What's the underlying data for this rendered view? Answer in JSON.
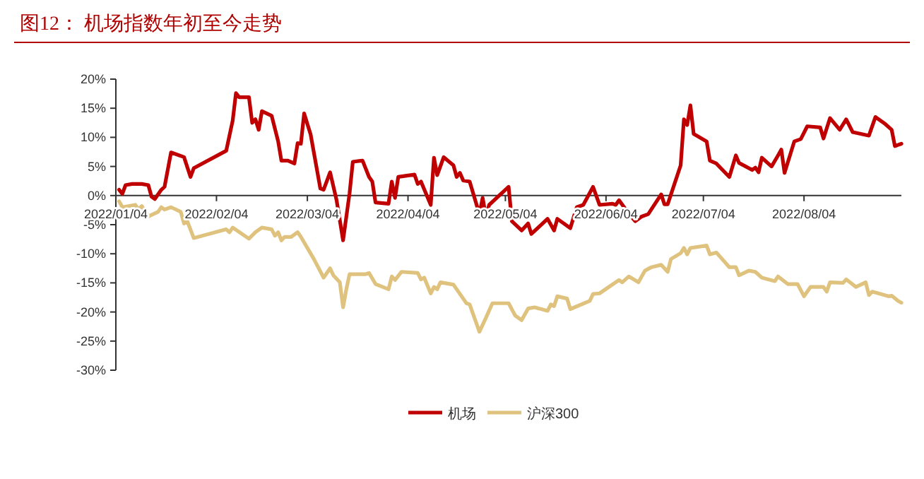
{
  "chart_data": {
    "type": "line",
    "title": "图12：  机场指数年初至今走势",
    "xlim": [
      "2022-01-04",
      "2022-09-03"
    ],
    "xticks": [
      {
        "value": "2022-01-04",
        "label": "2022/01/04"
      },
      {
        "value": "2022-02-04",
        "label": "2022/02/04"
      },
      {
        "value": "2022-03-04",
        "label": "2022/03/04"
      },
      {
        "value": "2022-04-04",
        "label": "2022/04/04"
      },
      {
        "value": "2022-05-04",
        "label": "2022/05/04"
      },
      {
        "value": "2022-06-04",
        "label": "2022/06/04"
      },
      {
        "value": "2022-07-04",
        "label": "2022/07/04"
      },
      {
        "value": "2022-08-04",
        "label": "2022/08/04"
      }
    ],
    "ylim": [
      -30,
      20
    ],
    "yticks": [
      {
        "value": -30,
        "label": "-30%"
      },
      {
        "value": -25,
        "label": "-25%"
      },
      {
        "value": -20,
        "label": "-20%"
      },
      {
        "value": -15,
        "label": "-15%"
      },
      {
        "value": -10,
        "label": "-10%"
      },
      {
        "value": -5,
        "label": "-5%"
      },
      {
        "value": 0,
        "label": "0%"
      },
      {
        "value": 5,
        "label": "5%"
      },
      {
        "value": 10,
        "label": "10%"
      },
      {
        "value": 15,
        "label": "15%"
      },
      {
        "value": 20,
        "label": "20%"
      }
    ],
    "grid": false,
    "legend": "bottom",
    "marker": "none",
    "line_style": "solid",
    "series": [
      {
        "name": "机场",
        "color": "#c00000",
        "x": [
          "2022-01-05",
          "2022-01-06",
          "2022-01-07",
          "2022-01-09",
          "2022-01-12",
          "2022-01-14",
          "2022-01-15",
          "2022-01-16",
          "2022-01-18",
          "2022-01-19",
          "2022-01-21",
          "2022-01-25",
          "2022-01-27",
          "2022-01-28",
          "2022-02-07",
          "2022-02-09",
          "2022-02-10",
          "2022-02-11",
          "2022-02-14",
          "2022-02-15",
          "2022-02-16",
          "2022-02-17",
          "2022-02-18",
          "2022-02-21",
          "2022-02-23",
          "2022-02-24",
          "2022-02-26",
          "2022-02-28",
          "2022-03-01",
          "2022-03-02",
          "2022-03-03",
          "2022-03-05",
          "2022-03-08",
          "2022-03-09",
          "2022-03-11",
          "2022-03-13",
          "2022-03-15",
          "2022-03-17",
          "2022-03-18",
          "2022-03-21",
          "2022-03-23",
          "2022-03-24",
          "2022-03-25",
          "2022-03-29",
          "2022-03-30",
          "2022-03-31",
          "2022-04-01",
          "2022-04-06",
          "2022-04-07",
          "2022-04-08",
          "2022-04-11",
          "2022-04-12",
          "2022-04-13",
          "2022-04-15",
          "2022-04-18",
          "2022-04-19",
          "2022-04-20",
          "2022-04-21",
          "2022-04-23",
          "2022-04-26",
          "2022-04-27",
          "2022-04-28",
          "2022-04-29",
          "2022-05-05",
          "2022-05-06",
          "2022-05-09",
          "2022-05-11",
          "2022-05-12",
          "2022-05-17",
          "2022-05-19",
          "2022-05-20",
          "2022-05-24",
          "2022-05-26",
          "2022-05-28",
          "2022-05-31",
          "2022-06-02",
          "2022-06-06",
          "2022-06-07",
          "2022-06-08",
          "2022-06-11",
          "2022-06-13",
          "2022-06-15",
          "2022-06-17",
          "2022-06-21",
          "2022-06-22",
          "2022-06-23",
          "2022-06-27",
          "2022-06-28",
          "2022-06-29",
          "2022-06-30",
          "2022-07-01",
          "2022-07-05",
          "2022-07-06",
          "2022-07-08",
          "2022-07-12",
          "2022-07-14",
          "2022-07-15",
          "2022-07-19",
          "2022-07-20",
          "2022-07-21",
          "2022-07-22",
          "2022-07-25",
          "2022-07-27",
          "2022-07-28",
          "2022-07-29",
          "2022-08-01",
          "2022-08-03",
          "2022-08-05",
          "2022-08-09",
          "2022-08-10",
          "2022-08-12",
          "2022-08-15",
          "2022-08-17",
          "2022-08-19",
          "2022-08-24",
          "2022-08-26",
          "2022-08-29",
          "2022-08-31",
          "2022-09-01",
          "2022-09-03"
        ],
        "values": [
          1.0,
          0.3,
          1.8,
          2.0,
          2.0,
          1.8,
          -0.2,
          -0.6,
          1.0,
          1.5,
          7.4,
          6.6,
          3.2,
          4.7,
          7.7,
          12.9,
          17.6,
          16.9,
          16.9,
          12.5,
          13.1,
          11.3,
          14.5,
          13.7,
          9.3,
          6.0,
          6.0,
          5.5,
          9.0,
          8.9,
          14.1,
          10.5,
          1.2,
          1.0,
          4.0,
          -0.8,
          -7.7,
          0.4,
          5.8,
          6.0,
          3.2,
          2.4,
          -1.2,
          -1.4,
          2.4,
          -0.4,
          3.2,
          3.6,
          2.0,
          2.4,
          -1.6,
          6.5,
          3.5,
          6.6,
          5.2,
          3.2,
          3.9,
          2.6,
          2.4,
          -3.2,
          -0.4,
          -3.6,
          -1.6,
          1.5,
          -4.4,
          -6.0,
          -4.8,
          -6.6,
          -4.0,
          -6.0,
          -4.0,
          -5.6,
          -2.0,
          -1.6,
          1.5,
          -1.6,
          -1.4,
          -1.6,
          -0.8,
          -3.1,
          -4.4,
          -3.6,
          -3.2,
          0.2,
          -1.5,
          -1.5,
          5.2,
          13.1,
          12.1,
          15.5,
          10.6,
          9.3,
          6.0,
          5.5,
          3.2,
          6.9,
          5.6,
          4.4,
          4.8,
          4.0,
          6.5,
          5.0,
          6.9,
          7.9,
          3.9,
          9.3,
          9.7,
          11.9,
          11.7,
          9.8,
          13.3,
          11.3,
          13.1,
          10.9,
          10.3,
          13.5,
          12.3,
          11.3,
          8.5,
          8.9
        ]
      },
      {
        "name": "沪深300",
        "color": "#dfc27d",
        "x": [
          "2022-01-05",
          "2022-01-06",
          "2022-01-10",
          "2022-01-11",
          "2022-01-12",
          "2022-01-14",
          "2022-01-17",
          "2022-01-18",
          "2022-01-19",
          "2022-01-21",
          "2022-01-24",
          "2022-01-25",
          "2022-01-26",
          "2022-01-28",
          "2022-02-07",
          "2022-02-08",
          "2022-02-09",
          "2022-02-14",
          "2022-02-16",
          "2022-02-18",
          "2022-02-21",
          "2022-02-22",
          "2022-02-23",
          "2022-02-24",
          "2022-02-25",
          "2022-02-27",
          "2022-03-01",
          "2022-03-02",
          "2022-03-06",
          "2022-03-09",
          "2022-03-11",
          "2022-03-12",
          "2022-03-14",
          "2022-03-15",
          "2022-03-16",
          "2022-03-17",
          "2022-03-22",
          "2022-03-23",
          "2022-03-25",
          "2022-03-29",
          "2022-03-30",
          "2022-03-31",
          "2022-04-02",
          "2022-04-07",
          "2022-04-08",
          "2022-04-09",
          "2022-04-11",
          "2022-04-12",
          "2022-04-13",
          "2022-04-14",
          "2022-04-18",
          "2022-04-22",
          "2022-04-23",
          "2022-04-26",
          "2022-04-28",
          "2022-04-30",
          "2022-05-05",
          "2022-05-07",
          "2022-05-09",
          "2022-05-11",
          "2022-05-13",
          "2022-05-17",
          "2022-05-18",
          "2022-05-19",
          "2022-05-20",
          "2022-05-23",
          "2022-05-24",
          "2022-05-30",
          "2022-05-31",
          "2022-06-02",
          "2022-06-08",
          "2022-06-09",
          "2022-06-11",
          "2022-06-14",
          "2022-06-16",
          "2022-06-18",
          "2022-06-21",
          "2022-06-23",
          "2022-06-24",
          "2022-06-27",
          "2022-06-28",
          "2022-06-29",
          "2022-06-30",
          "2022-07-05",
          "2022-07-06",
          "2022-07-08",
          "2022-07-12",
          "2022-07-14",
          "2022-07-15",
          "2022-07-18",
          "2022-07-20",
          "2022-07-22",
          "2022-07-26",
          "2022-07-27",
          "2022-07-30",
          "2022-08-02",
          "2022-08-04",
          "2022-08-06",
          "2022-08-10",
          "2022-08-11",
          "2022-08-12",
          "2022-08-16",
          "2022-08-17",
          "2022-08-20",
          "2022-08-23",
          "2022-08-24",
          "2022-08-25",
          "2022-08-30",
          "2022-08-31",
          "2022-09-02",
          "2022-09-03"
        ],
        "values": [
          -1.0,
          -2.0,
          -1.6,
          -2.4,
          -1.8,
          -3.6,
          -2.8,
          -2.0,
          -2.4,
          -2.0,
          -2.8,
          -4.8,
          -4.4,
          -7.3,
          -5.8,
          -6.3,
          -5.5,
          -7.4,
          -6.3,
          -5.5,
          -5.8,
          -6.9,
          -6.3,
          -7.7,
          -7.1,
          -7.1,
          -6.3,
          -7.1,
          -10.9,
          -14.1,
          -12.5,
          -13.7,
          -14.9,
          -19.2,
          -16.1,
          -13.5,
          -13.5,
          -13.3,
          -15.2,
          -16.1,
          -13.9,
          -14.5,
          -13.1,
          -13.3,
          -14.4,
          -14.1,
          -16.8,
          -15.7,
          -16.1,
          -14.9,
          -15.3,
          -18.5,
          -18.7,
          -23.4,
          -21.0,
          -18.5,
          -18.5,
          -20.6,
          -21.4,
          -19.4,
          -19.2,
          -19.8,
          -18.7,
          -19.0,
          -17.3,
          -17.7,
          -19.5,
          -18.1,
          -16.9,
          -16.8,
          -14.5,
          -14.9,
          -13.9,
          -14.9,
          -12.9,
          -12.3,
          -11.9,
          -13.1,
          -10.9,
          -9.9,
          -9.0,
          -10.1,
          -9.0,
          -8.6,
          -10.1,
          -9.8,
          -12.3,
          -12.3,
          -13.7,
          -12.9,
          -13.1,
          -14.1,
          -14.7,
          -13.9,
          -15.2,
          -15.2,
          -17.3,
          -15.7,
          -15.7,
          -16.5,
          -14.9,
          -15.0,
          -14.4,
          -15.7,
          -14.9,
          -17.1,
          -16.5,
          -17.3,
          -17.2,
          -18.1,
          -18.4
        ]
      }
    ]
  }
}
